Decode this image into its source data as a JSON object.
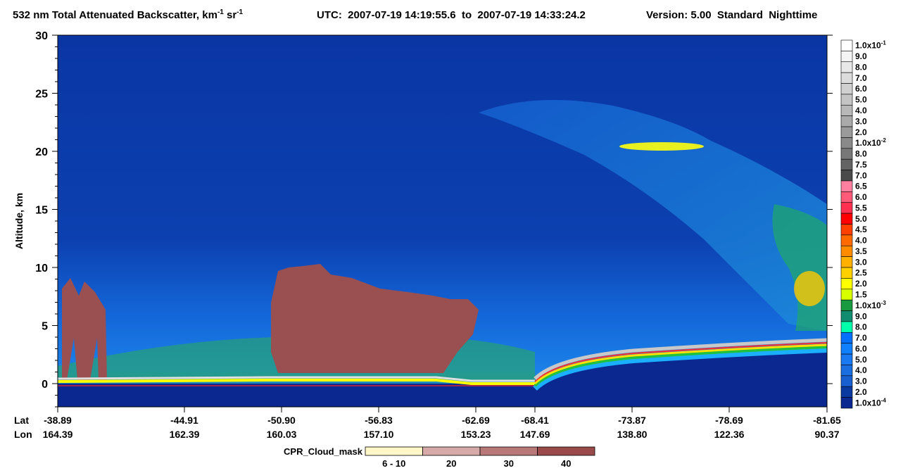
{
  "chart_data": {
    "type": "curtain",
    "title_parts": [
      "532 nm Total Attenuated Backscatter, km",
      "-1",
      " sr",
      "-1"
    ],
    "time_range": "UTC:  2007-07-19 14:19:55.6  to  2007-07-19 14:33:24.2",
    "version": "Version: 5.00  Standard  Nighttime",
    "y_label": "Altitude, km",
    "ylim": [
      -2,
      30
    ],
    "yticks": [
      0,
      5,
      10,
      15,
      20,
      25,
      30
    ],
    "x_row_labels": [
      "Lat",
      "Lon"
    ],
    "lat": [
      "-38.89",
      "-44.91",
      "-50.90",
      "-56.83",
      "-62.69",
      "-68.41",
      "-73.87",
      "-78.69",
      "-81.65"
    ],
    "lon": [
      "164.39",
      "162.39",
      "160.03",
      "157.10",
      "153.23",
      "147.69",
      "138.80",
      "122.36",
      "90.37"
    ],
    "colorbar": {
      "labels": [
        {
          "text": "1.0x10",
          "exp": "-1"
        },
        {
          "text": "9.0"
        },
        {
          "text": "8.0"
        },
        {
          "text": "7.0"
        },
        {
          "text": "6.0"
        },
        {
          "text": "5.0"
        },
        {
          "text": "4.0"
        },
        {
          "text": "3.0"
        },
        {
          "text": "2.0"
        },
        {
          "text": "1.0x10",
          "exp": "-2"
        },
        {
          "text": "8.0"
        },
        {
          "text": "7.5"
        },
        {
          "text": "7.0"
        },
        {
          "text": "6.5"
        },
        {
          "text": "6.0"
        },
        {
          "text": "5.5"
        },
        {
          "text": "5.0"
        },
        {
          "text": "4.5"
        },
        {
          "text": "4.0"
        },
        {
          "text": "3.5"
        },
        {
          "text": "3.0"
        },
        {
          "text": "2.5"
        },
        {
          "text": "2.0"
        },
        {
          "text": "1.5"
        },
        {
          "text": "1.0x10",
          "exp": "-3"
        },
        {
          "text": "9.0"
        },
        {
          "text": "8.0"
        },
        {
          "text": "7.0"
        },
        {
          "text": "6.0"
        },
        {
          "text": "5.0"
        },
        {
          "text": "4.0"
        },
        {
          "text": "3.0"
        },
        {
          "text": "2.0"
        },
        {
          "text": "1.0x10",
          "exp": "-4"
        }
      ],
      "colors": [
        "#ffffff",
        "#f4f4f4",
        "#e8e8e8",
        "#dcdcdc",
        "#d0d0d0",
        "#c4c4c4",
        "#b8b8b8",
        "#aaaaaa",
        "#9a9a9a",
        "#8a8a8a",
        "#787878",
        "#646464",
        "#4a4a4a",
        "#ff7fa0",
        "#ff5a78",
        "#ff3050",
        "#ff0000",
        "#ff4000",
        "#ff6a00",
        "#ff8c00",
        "#ffb000",
        "#ffd000",
        "#ffff00",
        "#d8ff00",
        "#1a9a40",
        "#108c70",
        "#00ffaa",
        "#0070ff",
        "#1080ff",
        "#1a78f0",
        "#1a6ee0",
        "#1860d0",
        "#0a3aa0",
        "#0a2890"
      ]
    },
    "cpr_label": "CPR_Cloud_mask",
    "cpr": {
      "labels": [
        "6 - 10",
        "20",
        "30",
        "40"
      ],
      "colors": [
        "#fff7c8",
        "#d6aaa8",
        "#b87878",
        "#9a4a4a"
      ]
    }
  }
}
